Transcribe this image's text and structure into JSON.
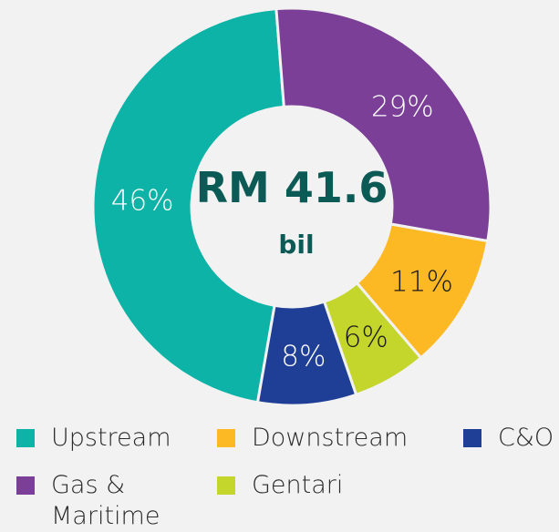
{
  "chart_data": {
    "type": "donut",
    "center_text": [
      "RM 41.6",
      "bil"
    ],
    "categories": [
      "Gas & Maritime",
      "Downstream",
      "Gentari",
      "C&O",
      "Upstream"
    ],
    "values": [
      29,
      11,
      6,
      8,
      46
    ],
    "value_labels": [
      "29%",
      "11%",
      "6%",
      "8%",
      "46%"
    ],
    "colors": [
      "#7b3f98",
      "#fdb924",
      "#c4d52c",
      "#1f3f96",
      "#0db3a6"
    ],
    "label_colors": [
      "#ffffff",
      "#1a1a1a",
      "#1a1a1a",
      "#ffffff",
      "#ffffff"
    ]
  }
}
